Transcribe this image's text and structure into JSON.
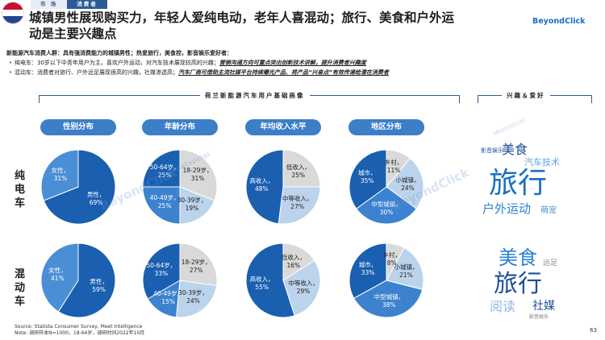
{
  "header": {
    "crumbs": [
      "市 场",
      "消费者"
    ],
    "title_line1": "城镇男性展现购买力，年轻人爱纯电动，老年人喜混动；旅行、美食和户外运",
    "title_line2": "动是主要兴趣点",
    "logo": "BeyondClick",
    "flag_colors": [
      "#c8102e",
      "#ffffff",
      "#21468b"
    ]
  },
  "summary": {
    "head": "新能源汽车消费人群：具有强消费能力的城镇男性；热爱旅行，美食控，影音娱乐爱好者：",
    "b1_text": "纯电车：30岁以下中青年用户为主，喜欢户外运动，对汽车技术展现较高的兴趣；",
    "b1_hl": "营销沟通方向可重点突出创新技术讲解，提升消费者兴趣度",
    "b2_text": "混动车：消费者对旅行、户外远足展现很高的兴趣，社媒渗透高；",
    "b2_hl": "汽车厂商可借助主流社媒平台持续曝光产品、将产品“兴奋点”有效传递给潜在消费者"
  },
  "sections": {
    "profile": "荷兰新能源汽车用户基础画像",
    "interests": "兴趣＆爱好"
  },
  "pills": [
    "性别分布",
    "年龄分布",
    "年均收入水平",
    "地区分布"
  ],
  "rows": {
    "ev": "纯电车",
    "hybrid": "混动车"
  },
  "chart_data": [
    {
      "type": "pie",
      "row": "纯电车",
      "title": "性别分布",
      "slices": [
        {
          "label": "男性",
          "value": 69,
          "color": "#1a5fb0"
        },
        {
          "label": "女性",
          "value": 31,
          "color": "#4a8fd6"
        }
      ]
    },
    {
      "type": "pie",
      "row": "纯电车",
      "title": "年龄分布",
      "slices": [
        {
          "label": "18-29岁",
          "value": 31,
          "color": "#d9d9d9"
        },
        {
          "label": "30-39岁",
          "value": 19,
          "color": "#bcd3ec"
        },
        {
          "label": "40-49岁",
          "value": 25,
          "color": "#3c82cf"
        },
        {
          "label": "50-64岁",
          "value": 25,
          "color": "#1a5fb0"
        }
      ]
    },
    {
      "type": "pie",
      "row": "纯电车",
      "title": "年均收入水平",
      "slices": [
        {
          "label": "低收入",
          "value": 25,
          "color": "#d9d9d9"
        },
        {
          "label": "中等收入",
          "value": 27,
          "color": "#bcd3ec"
        },
        {
          "label": "高收入",
          "value": 48,
          "color": "#1a5fb0"
        }
      ]
    },
    {
      "type": "pie",
      "row": "纯电车",
      "title": "地区分布",
      "slices": [
        {
          "label": "乡村",
          "value": 11,
          "color": "#d9d9d9"
        },
        {
          "label": "小城镇",
          "value": 24,
          "color": "#bcd3ec"
        },
        {
          "label": "中型城镇",
          "value": 30,
          "color": "#3c82cf"
        },
        {
          "label": "城市",
          "value": 35,
          "color": "#1a5fb0"
        }
      ]
    },
    {
      "type": "pie",
      "row": "混动车",
      "title": "性别分布",
      "slices": [
        {
          "label": "男性",
          "value": 59,
          "color": "#1a5fb0"
        },
        {
          "label": "女性",
          "value": 41,
          "color": "#4a8fd6"
        }
      ]
    },
    {
      "type": "pie",
      "row": "混动车",
      "title": "年龄分布",
      "slices": [
        {
          "label": "18-29岁",
          "value": 27,
          "color": "#d9d9d9"
        },
        {
          "label": "30-39岁",
          "value": 24,
          "color": "#bcd3ec"
        },
        {
          "label": "40-49岁",
          "value": 15,
          "color": "#3c82cf"
        },
        {
          "label": "50-64岁",
          "value": 33,
          "color": "#1a5fb0"
        }
      ]
    },
    {
      "type": "pie",
      "row": "混动车",
      "title": "年均收入水平",
      "slices": [
        {
          "label": "低收入",
          "value": 16,
          "color": "#d9d9d9"
        },
        {
          "label": "中等收入",
          "value": 29,
          "color": "#bcd3ec"
        },
        {
          "label": "高收入",
          "value": 55,
          "color": "#1a5fb0"
        }
      ]
    },
    {
      "type": "pie",
      "row": "混动车",
      "title": "地区分布",
      "slices": [
        {
          "label": "乡村",
          "value": 8,
          "color": "#d9d9d9"
        },
        {
          "label": "小城镇",
          "value": 21,
          "color": "#bcd3ec"
        },
        {
          "label": "中型城镇",
          "value": 38,
          "color": "#3c82cf"
        },
        {
          "label": "城市",
          "value": 33,
          "color": "#1a5fb0"
        }
      ]
    }
  ],
  "interest_words": {
    "ev": [
      {
        "text": "Meetsocial",
        "color": "#c9dbef"
      },
      {
        "text": "影音娱乐",
        "color": "#1d4f9a"
      },
      {
        "text": "美食",
        "color": "#1d4f9a"
      },
      {
        "text": "汽车技术",
        "color": "#5ea2e3"
      },
      {
        "text": "旅行",
        "color": "#1a6fc4"
      },
      {
        "text": "户外运动",
        "color": "#2a82d6"
      },
      {
        "text": "萌宠",
        "color": "#4a8fd6"
      }
    ],
    "hybrid": [
      {
        "text": "美食",
        "color": "#2a82d6"
      },
      {
        "text": "远足",
        "color": "#8a8a8a"
      },
      {
        "text": "旅行",
        "color": "#1d4f9a"
      },
      {
        "text": "阅读",
        "color": "#8fb9e6"
      },
      {
        "text": "社媒",
        "color": "#1d4f9a"
      },
      {
        "text": "影音娱乐",
        "color": "#7a7a7a"
      }
    ]
  },
  "watermarks": [
    "Meetsocial",
    "BeyondClick"
  ],
  "source": {
    "line1": "Source: Statista Consumer Survey, Meet Intelligence",
    "line2": "Note: 调研样本N=1000，18-64岁，调研时间2022年10月"
  },
  "page_number": "63"
}
